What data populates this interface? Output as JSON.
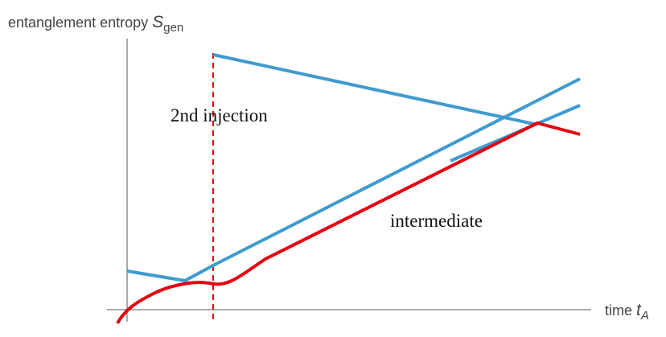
{
  "y_label": {
    "text": "entanglement entropy ",
    "symbol": "S",
    "subscript": "gen"
  },
  "x_label": {
    "text": "time ",
    "symbol": "t",
    "subscript": "A"
  },
  "annotations": [
    "2nd injection",
    "intermediate"
  ]
}
